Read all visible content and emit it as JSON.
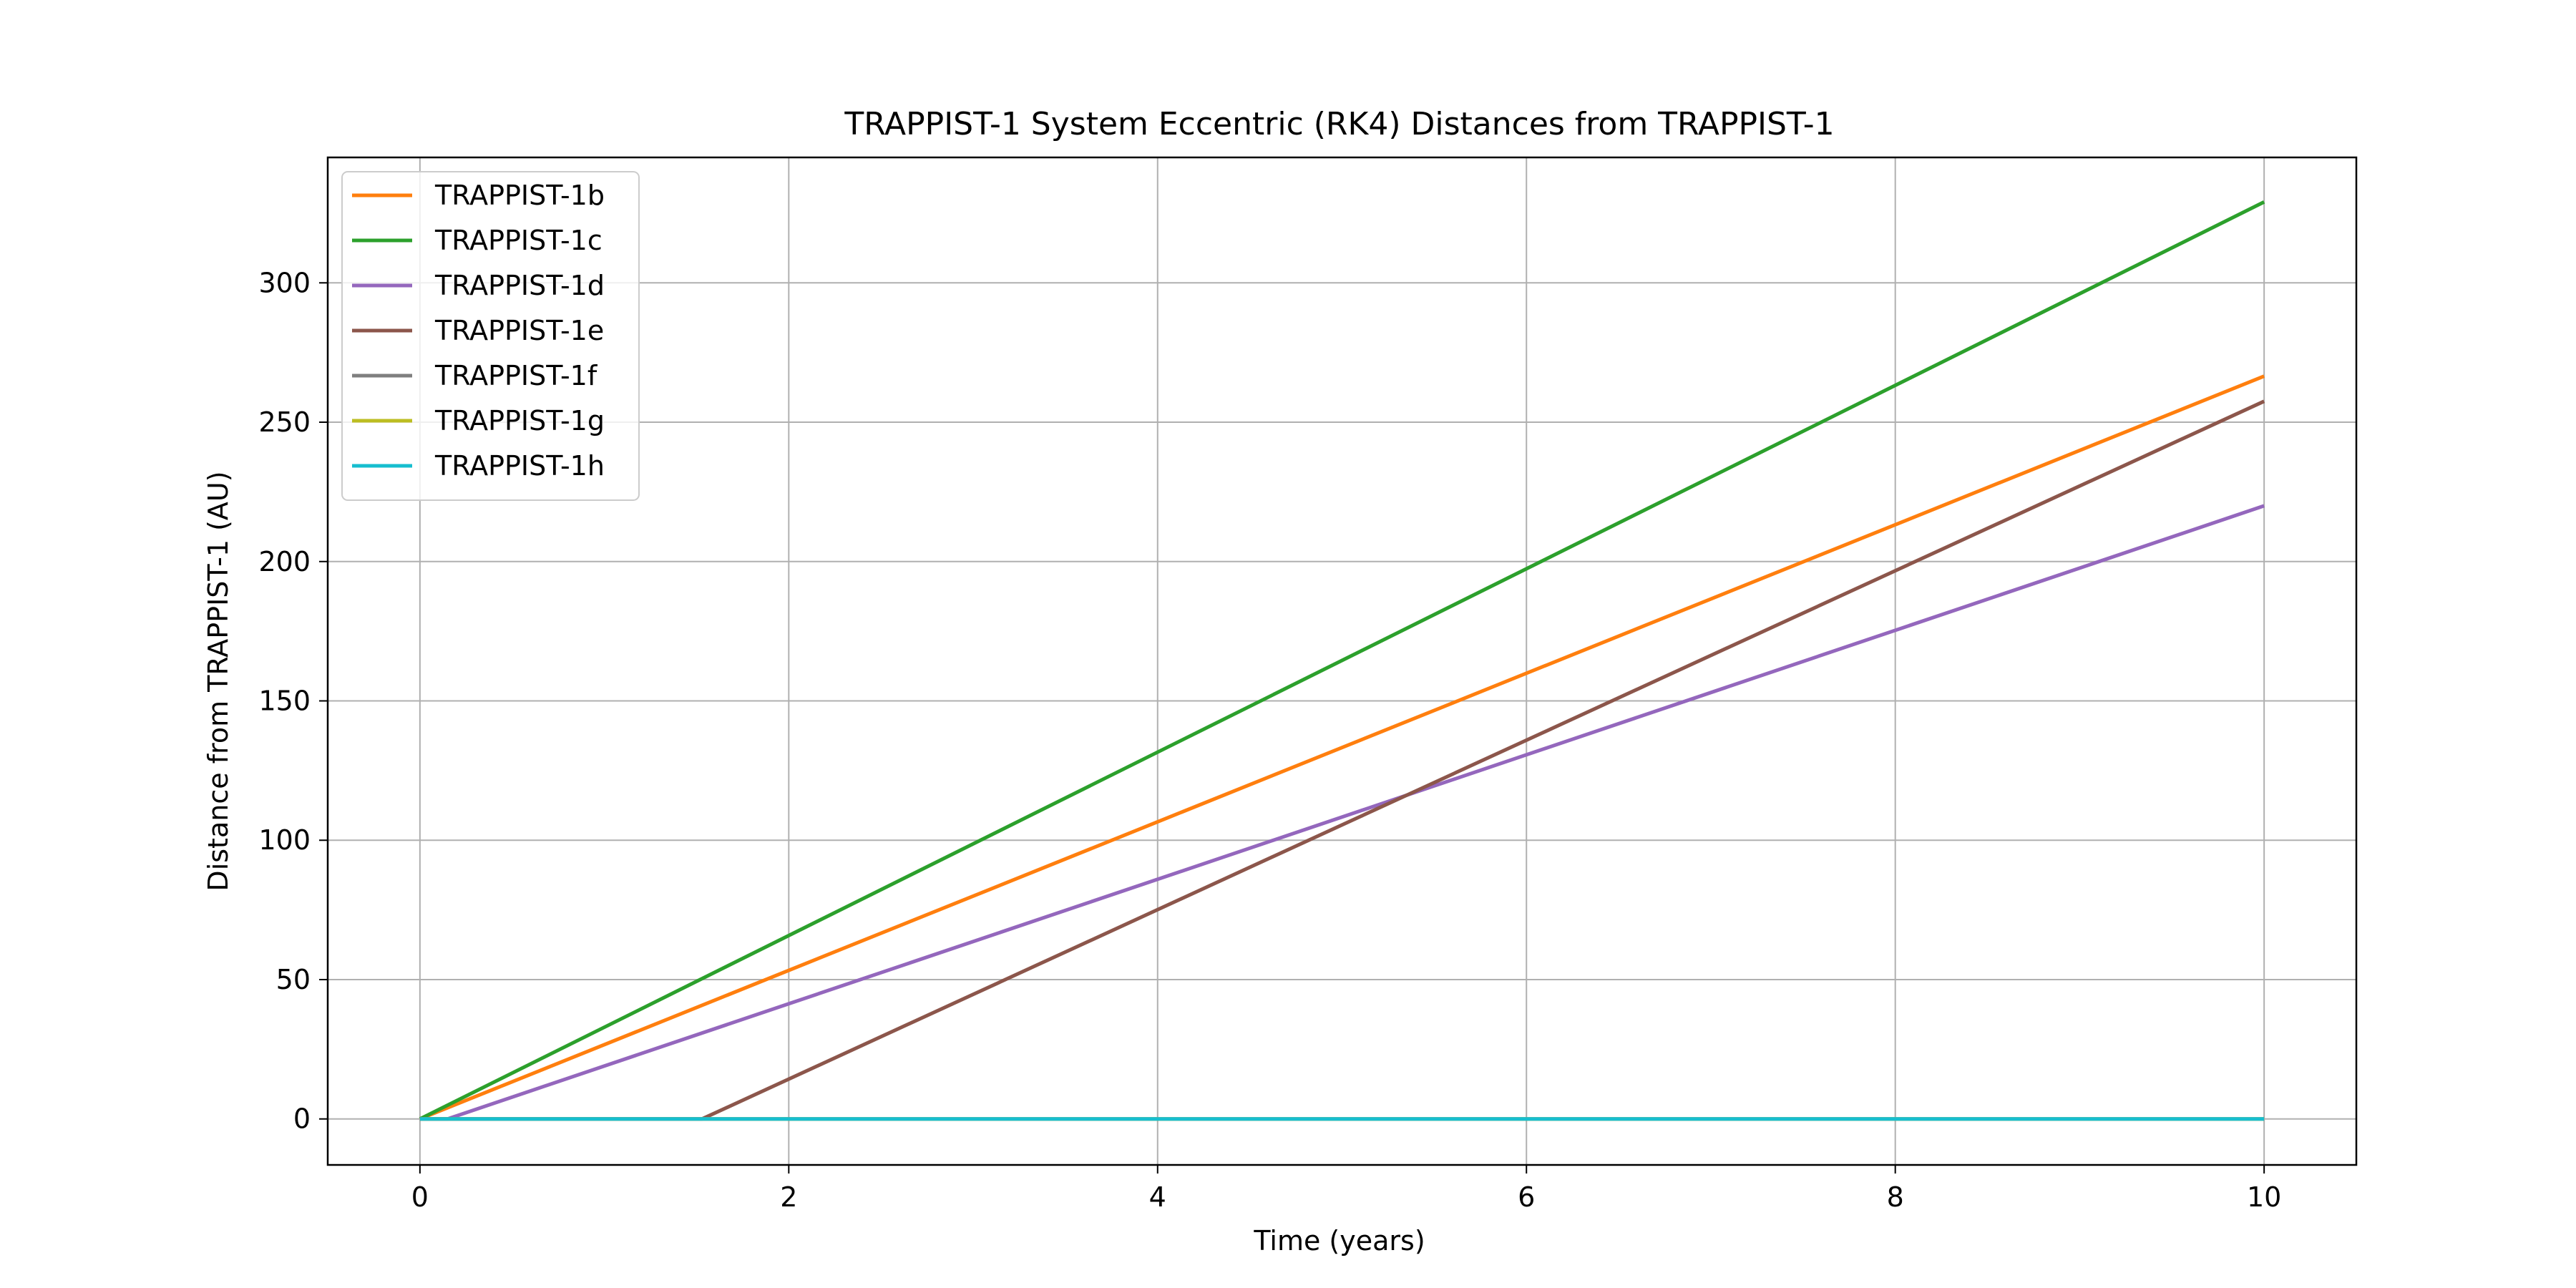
{
  "chart_data": {
    "type": "line",
    "title": "TRAPPIST-1 System Eccentric (RK4) Distances from TRAPPIST-1",
    "xlabel": "Time (years)",
    "ylabel": "Distance from TRAPPIST-1 (AU)",
    "xlim": [
      -0.5,
      10.5
    ],
    "ylim": [
      -16.5,
      345
    ],
    "xticks": [
      0,
      2,
      4,
      6,
      8,
      10
    ],
    "yticks": [
      0,
      50,
      100,
      150,
      200,
      250,
      300
    ],
    "grid": true,
    "legend_position": "upper-left",
    "series": [
      {
        "name": "TRAPPIST-1b",
        "color": "#ff7f0e",
        "x": [
          0,
          10
        ],
        "y": [
          0,
          266.5
        ]
      },
      {
        "name": "TRAPPIST-1c",
        "color": "#2ca02c",
        "x": [
          0,
          10
        ],
        "y": [
          0,
          329
        ]
      },
      {
        "name": "TRAPPIST-1d",
        "color": "#9467bd",
        "x": [
          0,
          0.15,
          10
        ],
        "y": [
          0,
          0,
          220
        ]
      },
      {
        "name": "TRAPPIST-1e",
        "color": "#8c564b",
        "x": [
          0,
          1.53,
          10
        ],
        "y": [
          0,
          0,
          257.5
        ]
      },
      {
        "name": "TRAPPIST-1f",
        "color": "#7f7f7f",
        "x": [
          0,
          10
        ],
        "y": [
          0,
          0
        ]
      },
      {
        "name": "TRAPPIST-1g",
        "color": "#bcbd22",
        "x": [
          0,
          10
        ],
        "y": [
          0,
          0
        ]
      },
      {
        "name": "TRAPPIST-1h",
        "color": "#17becf",
        "x": [
          0,
          10
        ],
        "y": [
          0,
          0
        ]
      }
    ]
  }
}
